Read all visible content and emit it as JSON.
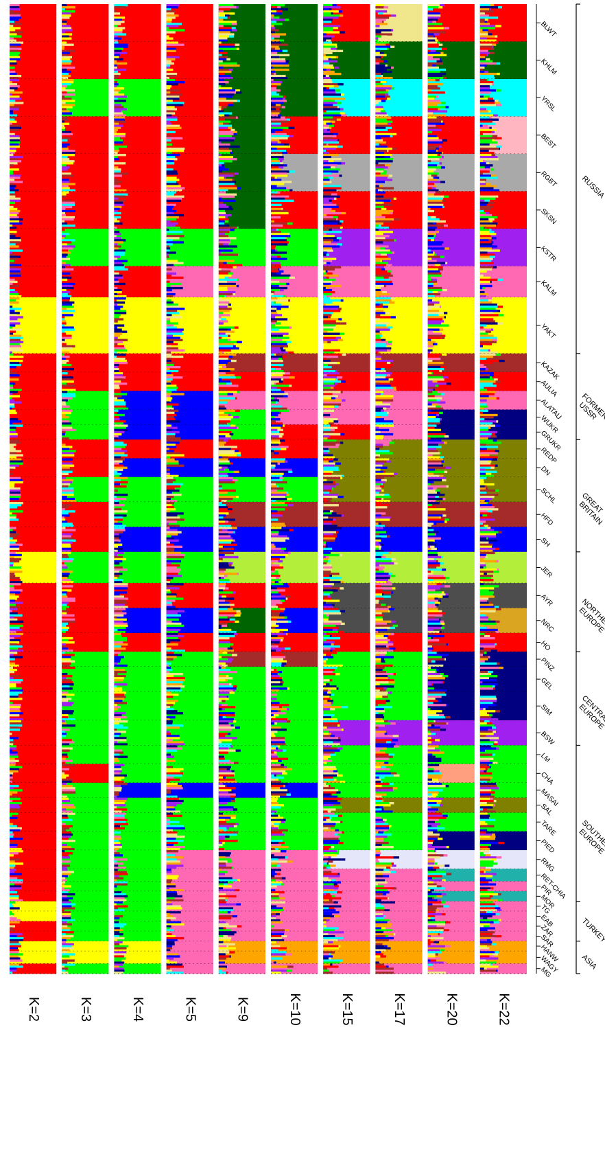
{
  "chart_data": {
    "type": "stacked_bar_admixture",
    "orientation": "rotated",
    "k_values": [
      "K=2",
      "K=3",
      "K=4",
      "K=5",
      "K=9",
      "K=10",
      "K=15",
      "K=17",
      "K=20",
      "K=22"
    ],
    "breeds": [
      {
        "code": "BLWT",
        "region": "RUSSIA",
        "w": 3
      },
      {
        "code": "KHLM",
        "region": "RUSSIA",
        "w": 3
      },
      {
        "code": "YRSL",
        "region": "RUSSIA",
        "w": 3
      },
      {
        "code": "BEST",
        "region": "RUSSIA",
        "w": 3
      },
      {
        "code": "RGBT",
        "region": "RUSSIA",
        "w": 3
      },
      {
        "code": "SKSN",
        "region": "RUSSIA",
        "w": 3
      },
      {
        "code": "KSTR",
        "region": "RUSSIA",
        "w": 3
      },
      {
        "code": "KALM",
        "region": "RUSSIA",
        "w": 2.5
      },
      {
        "code": "YAKT",
        "region": "RUSSIA",
        "w": 4.5
      },
      {
        "code": "KAZAK",
        "region": "FORMER USSR",
        "w": 1.5
      },
      {
        "code": "AULIA",
        "region": "FORMER USSR",
        "w": 1.5
      },
      {
        "code": "ALATAU",
        "region": "FORMER USSR",
        "w": 1.5
      },
      {
        "code": "WUKR",
        "region": "FORMER USSR",
        "w": 1.2
      },
      {
        "code": "GRUKR",
        "region": "FORMER USSR",
        "w": 1.2
      },
      {
        "code": "REDP",
        "region": "GREAT BRITAIN",
        "w": 1.5
      },
      {
        "code": "DN",
        "region": "GREAT BRITAIN",
        "w": 1.5
      },
      {
        "code": "SCHL",
        "region": "GREAT BRITAIN",
        "w": 2
      },
      {
        "code": "HFD",
        "region": "GREAT BRITAIN",
        "w": 2
      },
      {
        "code": "SH",
        "region": "GREAT BRITAIN",
        "w": 2
      },
      {
        "code": "JER",
        "region": "NORTHERN EUROPE",
        "w": 2.5
      },
      {
        "code": "AYR",
        "region": "NORTHERN EUROPE",
        "w": 2
      },
      {
        "code": "NRC",
        "region": "NORTHERN EUROPE",
        "w": 2
      },
      {
        "code": "HO",
        "region": "NORTHERN EUROPE",
        "w": 1.5
      },
      {
        "code": "PINZ",
        "region": "CENTRAL EUROPE",
        "w": 1.2
      },
      {
        "code": "GEL",
        "region": "CENTRAL EUROPE",
        "w": 2
      },
      {
        "code": "SIM",
        "region": "CENTRAL EUROPE",
        "w": 2.3
      },
      {
        "code": "BSW",
        "region": "CENTRAL EUROPE",
        "w": 2
      },
      {
        "code": "LM",
        "region": "SOUTHERN EUROPE",
        "w": 1.5
      },
      {
        "code": "CHA",
        "region": "SOUTHERN EUROPE",
        "w": 1.5
      },
      {
        "code": "MASAI",
        "region": "SOUTHERN EUROPE",
        "w": 1.2
      },
      {
        "code": "SAL",
        "region": "SOUTHERN EUROPE",
        "w": 1.2
      },
      {
        "code": "TARE",
        "region": "SOUTHERN EUROPE",
        "w": 1.5
      },
      {
        "code": "PIED",
        "region": "SOUTHERN EUROPE",
        "w": 1.5
      },
      {
        "code": "RMG",
        "region": "SOUTHERN EUROPE",
        "w": 1.5
      },
      {
        "code": "RET-CHIA",
        "region": "SOUTHERN EUROPE",
        "w": 1
      },
      {
        "code": "PIR",
        "region": "SOUTHERN EUROPE",
        "w": 0.8
      },
      {
        "code": "MOR",
        "region": "SOUTHERN EUROPE",
        "w": 0.8
      },
      {
        "code": "TG",
        "region": "TURKEY",
        "w": 0.8
      },
      {
        "code": "EAB",
        "region": "TURKEY",
        "w": 0.8
      },
      {
        "code": "ZAR",
        "region": "TURKEY",
        "w": 0.8
      },
      {
        "code": "SAR",
        "region": "TURKEY",
        "w": 0.8
      },
      {
        "code": "HANW",
        "region": "ASIA",
        "w": 0.8
      },
      {
        "code": "WAGY",
        "region": "ASIA",
        "w": 1
      },
      {
        "code": "MG",
        "region": "ASIA",
        "w": 0.8
      }
    ],
    "regions": [
      {
        "name": "RUSSIA",
        "lines": [
          "RUSSIA"
        ]
      },
      {
        "name": "FORMER USSR",
        "lines": [
          "FORMER",
          "USSR"
        ]
      },
      {
        "name": "GREAT BRITAIN",
        "lines": [
          "GREAT",
          "BRITAIN"
        ]
      },
      {
        "name": "NORTHERN EUROPE",
        "lines": [
          "NORTHERN",
          "EUROPE"
        ]
      },
      {
        "name": "CENTRAL EUROPE",
        "lines": [
          "CENTRAL",
          "EUROPE"
        ]
      },
      {
        "name": "SOUTHERN EUROPE",
        "lines": [
          "SOUTHERN",
          "EUROPE"
        ]
      },
      {
        "name": "TURKEY",
        "lines": [
          "TURKEY"
        ]
      },
      {
        "name": "ASIA",
        "lines": [
          "ASIA"
        ]
      }
    ],
    "cluster_colors": {
      "red": "#ff0000",
      "yellow": "#ffff00",
      "green": "#00ff00",
      "blue": "#0000ff",
      "pink": "#ff69b4",
      "darkgreen": "#006400",
      "brown": "#a52a2a",
      "lightgreen": "#b3ee3a",
      "orange": "#ffa500",
      "gray": "#a9a9a9",
      "darkgray": "#4d4d4d",
      "cyan": "#00ffff",
      "purple": "#a020f0",
      "olive": "#808000",
      "khaki": "#f0e68c",
      "navy": "#000080",
      "lavender": "#e6e6fa",
      "salmon": "#ff9f80",
      "teal": "#20b2aa",
      "lightpink": "#ffb6c1",
      "goldenrod": "#daa520",
      "violet": "#ee82ee"
    },
    "breed_clusters": {
      "BLWT": [
        "red",
        "red",
        "red",
        "red",
        "darkgreen",
        "darkgreen",
        "red",
        "khaki",
        "red",
        "red"
      ],
      "KHLM": [
        "red",
        "red",
        "red",
        "red",
        "darkgreen",
        "darkgreen",
        "darkgreen",
        "darkgreen",
        "darkgreen",
        "darkgreen"
      ],
      "YRSL": [
        "red",
        "green",
        "green",
        "red",
        "darkgreen",
        "darkgreen",
        "cyan",
        "cyan",
        "cyan",
        "cyan"
      ],
      "BEST": [
        "red",
        "red",
        "red",
        "red",
        "darkgreen",
        "red",
        "red",
        "red",
        "red",
        "lightpink"
      ],
      "RGBT": [
        "red",
        "red",
        "red",
        "red",
        "darkgreen",
        "gray",
        "gray",
        "gray",
        "gray",
        "gray"
      ],
      "SKSN": [
        "red",
        "red",
        "red",
        "red",
        "darkgreen",
        "red",
        "red",
        "red",
        "red",
        "red"
      ],
      "KSTR": [
        "red",
        "green",
        "green",
        "green",
        "green",
        "green",
        "purple",
        "purple",
        "purple",
        "purple"
      ],
      "KALM": [
        "red",
        "red",
        "red",
        "pink",
        "pink",
        "pink",
        "pink",
        "pink",
        "pink",
        "pink"
      ],
      "YAKT": [
        "yellow",
        "yellow",
        "yellow",
        "yellow",
        "yellow",
        "yellow",
        "yellow",
        "yellow",
        "yellow",
        "yellow"
      ],
      "KAZAK": [
        "red",
        "red",
        "red",
        "red",
        "brown",
        "brown",
        "brown",
        "brown",
        "brown",
        "brown"
      ],
      "AULIA": [
        "red",
        "red",
        "red",
        "red",
        "red",
        "red",
        "red",
        "red",
        "red",
        "red"
      ],
      "ALATAU": [
        "red",
        "green",
        "blue",
        "blue",
        "pink",
        "pink",
        "pink",
        "pink",
        "pink",
        "pink"
      ],
      "WUKR": [
        "red",
        "green",
        "blue",
        "blue",
        "green",
        "pink",
        "pink",
        "pink",
        "navy",
        "navy"
      ],
      "GRUKR": [
        "red",
        "green",
        "blue",
        "blue",
        "green",
        "red",
        "red",
        "pink",
        "navy",
        "navy"
      ],
      "REDP": [
        "red",
        "red",
        "red",
        "red",
        "red",
        "red",
        "olive",
        "olive",
        "olive",
        "olive"
      ],
      "DN": [
        "red",
        "red",
        "blue",
        "blue",
        "blue",
        "blue",
        "olive",
        "olive",
        "olive",
        "olive"
      ],
      "SCHL": [
        "red",
        "green",
        "green",
        "green",
        "green",
        "green",
        "olive",
        "olive",
        "olive",
        "olive"
      ],
      "HFD": [
        "red",
        "red",
        "green",
        "green",
        "brown",
        "brown",
        "brown",
        "brown",
        "brown",
        "brown"
      ],
      "SH": [
        "red",
        "red",
        "blue",
        "blue",
        "blue",
        "blue",
        "blue",
        "blue",
        "blue",
        "blue"
      ],
      "JER": [
        "yellow",
        "green",
        "green",
        "green",
        "lightgreen",
        "lightgreen",
        "lightgreen",
        "lightgreen",
        "lightgreen",
        "lightgreen"
      ],
      "AYR": [
        "red",
        "red",
        "red",
        "red",
        "red",
        "red",
        "darkgray",
        "darkgray",
        "darkgray",
        "darkgray"
      ],
      "NRC": [
        "red",
        "red",
        "blue",
        "blue",
        "darkgreen",
        "blue",
        "darkgray",
        "darkgray",
        "darkgray",
        "goldenrod"
      ],
      "HO": [
        "red",
        "red",
        "red",
        "red",
        "red",
        "red",
        "red",
        "red",
        "red",
        "red"
      ],
      "PINZ": [
        "red",
        "green",
        "green",
        "green",
        "brown",
        "brown",
        "green",
        "green",
        "navy",
        "navy"
      ],
      "GEL": [
        "red",
        "green",
        "green",
        "green",
        "green",
        "green",
        "green",
        "green",
        "navy",
        "navy"
      ],
      "SIM": [
        "red",
        "green",
        "green",
        "green",
        "green",
        "green",
        "green",
        "green",
        "navy",
        "navy"
      ],
      "BSW": [
        "red",
        "green",
        "green",
        "green",
        "green",
        "green",
        "purple",
        "purple",
        "purple",
        "purple"
      ],
      "LM": [
        "red",
        "green",
        "green",
        "green",
        "green",
        "green",
        "green",
        "green",
        "green",
        "green"
      ],
      "CHA": [
        "red",
        "red",
        "green",
        "green",
        "green",
        "green",
        "green",
        "green",
        "salmon",
        "green"
      ],
      "MASAI": [
        "red",
        "green",
        "blue",
        "blue",
        "blue",
        "blue",
        "green",
        "green",
        "green",
        "green"
      ],
      "SAL": [
        "red",
        "green",
        "green",
        "green",
        "green",
        "green",
        "olive",
        "olive",
        "olive",
        "olive"
      ],
      "TARE": [
        "red",
        "green",
        "green",
        "green",
        "green",
        "green",
        "green",
        "green",
        "green",
        "green"
      ],
      "PIED": [
        "red",
        "green",
        "green",
        "green",
        "green",
        "green",
        "green",
        "green",
        "navy",
        "navy"
      ],
      "RMG": [
        "red",
        "green",
        "green",
        "pink",
        "pink",
        "pink",
        "lavender",
        "lavender",
        "lavender",
        "lavender"
      ],
      "RET-CHIA": [
        "red",
        "green",
        "green",
        "pink",
        "pink",
        "pink",
        "pink",
        "pink",
        "teal",
        "teal"
      ],
      "PIR": [
        "red",
        "green",
        "green",
        "pink",
        "pink",
        "pink",
        "pink",
        "pink",
        "pink",
        "pink"
      ],
      "MOR": [
        "red",
        "green",
        "green",
        "pink",
        "pink",
        "pink",
        "pink",
        "pink",
        "teal",
        "teal"
      ],
      "TG": [
        "yellow",
        "green",
        "green",
        "pink",
        "pink",
        "pink",
        "pink",
        "pink",
        "pink",
        "pink"
      ],
      "EAB": [
        "yellow",
        "green",
        "green",
        "pink",
        "pink",
        "pink",
        "pink",
        "pink",
        "pink",
        "pink"
      ],
      "ZAR": [
        "red",
        "green",
        "green",
        "pink",
        "pink",
        "pink",
        "pink",
        "pink",
        "pink",
        "pink"
      ],
      "SAR": [
        "red",
        "green",
        "green",
        "pink",
        "pink",
        "pink",
        "pink",
        "pink",
        "pink",
        "pink"
      ],
      "HANW": [
        "yellow",
        "yellow",
        "yellow",
        "pink",
        "orange",
        "orange",
        "orange",
        "orange",
        "orange",
        "orange"
      ],
      "WAGY": [
        "yellow",
        "yellow",
        "yellow",
        "pink",
        "orange",
        "orange",
        "orange",
        "orange",
        "orange",
        "orange"
      ],
      "MG": [
        "red",
        "green",
        "green",
        "pink",
        "pink",
        "pink",
        "pink",
        "pink",
        "pink",
        "pink"
      ]
    }
  }
}
